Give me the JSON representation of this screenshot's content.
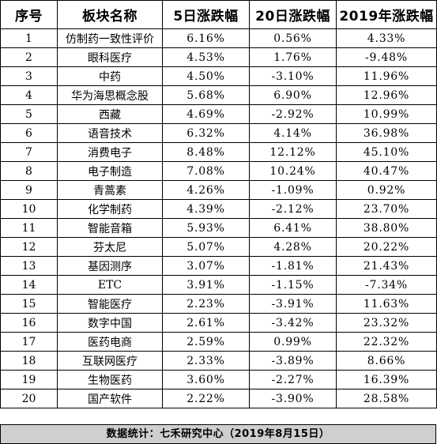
{
  "table": {
    "headers": [
      "序号",
      "板块名称",
      "5日涨跌幅",
      "20日涨跌幅",
      "2019年涨跌幅"
    ],
    "rows": [
      [
        "1",
        "仿制药一致性评价",
        "6.16%",
        "0.56%",
        "4.33%"
      ],
      [
        "2",
        "眼科医疗",
        "4.53%",
        "1.76%",
        "-9.48%"
      ],
      [
        "3",
        "中药",
        "4.50%",
        "-3.10%",
        "11.96%"
      ],
      [
        "4",
        "华为海思概念股",
        "5.68%",
        "6.90%",
        "12.96%"
      ],
      [
        "5",
        "西藏",
        "4.69%",
        "-2.92%",
        "10.99%"
      ],
      [
        "6",
        "语音技术",
        "6.32%",
        "4.14%",
        "36.98%"
      ],
      [
        "7",
        "消费电子",
        "8.48%",
        "12.12%",
        "45.10%"
      ],
      [
        "8",
        "电子制造",
        "7.08%",
        "10.24%",
        "40.47%"
      ],
      [
        "9",
        "青蒿素",
        "4.26%",
        "-1.09%",
        "0.92%"
      ],
      [
        "10",
        "化学制药",
        "4.39%",
        "-2.12%",
        "23.70%"
      ],
      [
        "11",
        "智能音箱",
        "5.93%",
        "6.41%",
        "38.80%"
      ],
      [
        "12",
        "芬太尼",
        "5.07%",
        "4.28%",
        "20.22%"
      ],
      [
        "13",
        "基因测序",
        "3.07%",
        "-1.81%",
        "21.43%"
      ],
      [
        "14",
        "ETC",
        "3.91%",
        "-1.15%",
        "-7.34%"
      ],
      [
        "15",
        "智能医疗",
        "2.23%",
        "-3.91%",
        "11.63%"
      ],
      [
        "16",
        "数字中国",
        "2.61%",
        "-3.42%",
        "23.32%"
      ],
      [
        "17",
        "医药电商",
        "2.59%",
        "0.99%",
        "22.32%"
      ],
      [
        "18",
        "互联网医疗",
        "2.33%",
        "-3.89%",
        "8.66%"
      ],
      [
        "19",
        "生物医药",
        "3.60%",
        "-2.27%",
        "16.39%"
      ],
      [
        "20",
        "国产软件",
        "2.22%",
        "-3.90%",
        "28.58%"
      ]
    ]
  },
  "footer": {
    "text": "数据统计：七禾研究中心（2019年8月15日）"
  }
}
